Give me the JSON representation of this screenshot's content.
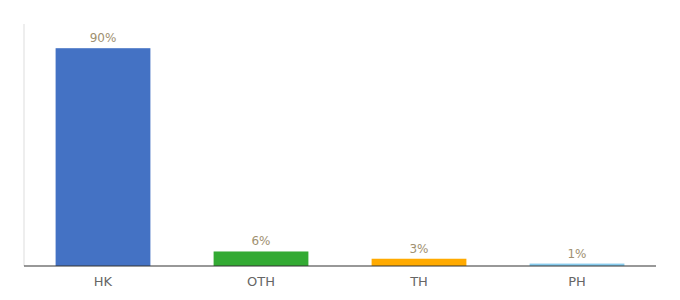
{
  "chart_data": {
    "type": "bar",
    "categories": [
      "HK",
      "OTH",
      "TH",
      "PH"
    ],
    "values": [
      90,
      6,
      3,
      1
    ],
    "value_labels": [
      "90%",
      "6%",
      "3%",
      "1%"
    ],
    "colors": [
      "#4472c4",
      "#33aa33",
      "#ffaa00",
      "#88ccee"
    ],
    "ylim": [
      0,
      100
    ],
    "data_labels": true,
    "tick_labels": "x"
  }
}
